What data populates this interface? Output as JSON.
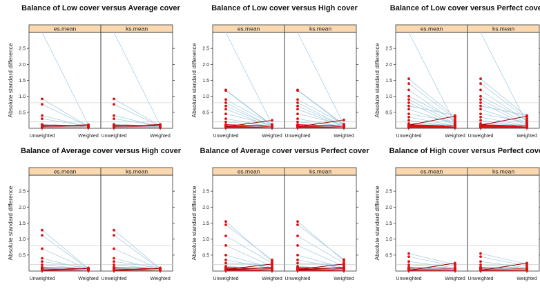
{
  "chart_data": [
    {
      "type": "line",
      "title": "Balance of Low cover versus Average cover",
      "ylabel": "Absolute standard difference",
      "panels": [
        "es.mean",
        "ks.mean"
      ],
      "x_categories": [
        "Unweighted",
        "Weighted"
      ],
      "y_ticks": [
        "0.5",
        "1.0",
        "1.5",
        "2.0",
        "2.5"
      ],
      "ylim": [
        0,
        3.0
      ],
      "reference_lines": [
        0.2,
        0.8
      ],
      "colors": {
        "points": "#dd1111",
        "normal_lines": "#a8cde0",
        "increase_lines": "#990000",
        "strip": "#fbd9b0"
      },
      "series": [
        {
          "panel": "es.mean",
          "pairs": [
            [
              0.92,
              0.06
            ],
            [
              0.75,
              0.05
            ],
            [
              0.4,
              0.04
            ],
            [
              0.3,
              0.06
            ],
            [
              0.12,
              0.05
            ],
            [
              0.1,
              0.03
            ],
            [
              0.08,
              0.1
            ],
            [
              0.05,
              0.03
            ],
            [
              0.03,
              0.02
            ],
            [
              0.06,
              0.11
            ],
            [
              3.0,
              0.1
            ]
          ]
        },
        {
          "panel": "ks.mean",
          "pairs": [
            [
              0.92,
              0.08
            ],
            [
              0.75,
              0.06
            ],
            [
              0.4,
              0.05
            ],
            [
              0.3,
              0.07
            ],
            [
              0.12,
              0.05
            ],
            [
              0.1,
              0.04
            ],
            [
              0.08,
              0.1
            ],
            [
              0.05,
              0.03
            ],
            [
              0.03,
              0.02
            ],
            [
              0.06,
              0.12
            ],
            [
              3.0,
              0.1
            ]
          ]
        }
      ]
    },
    {
      "type": "line",
      "title": "Balance of Low cover versus High cover",
      "ylabel": "Absolute standard difference",
      "panels": [
        "es.mean",
        "ks.mean"
      ],
      "x_categories": [
        "Unweighted",
        "Weighted"
      ],
      "y_ticks": [
        "0.5",
        "1.0",
        "1.5",
        "2.0",
        "2.5"
      ],
      "ylim": [
        0,
        3.0
      ],
      "reference_lines": [
        0.2,
        0.8
      ],
      "colors": {
        "points": "#dd1111",
        "normal_lines": "#a8cde0",
        "increase_lines": "#990000",
        "strip": "#fbd9b0"
      },
      "series": [
        {
          "panel": "es.mean",
          "pairs": [
            [
              1.2,
              0.1
            ],
            [
              1.18,
              0.08
            ],
            [
              0.9,
              0.12
            ],
            [
              0.8,
              0.05
            ],
            [
              0.7,
              0.06
            ],
            [
              0.6,
              0.04
            ],
            [
              0.45,
              0.1
            ],
            [
              0.3,
              0.05
            ],
            [
              0.2,
              0.08
            ],
            [
              0.1,
              0.03
            ],
            [
              0.05,
              0.25
            ],
            [
              3.0,
              0.12
            ]
          ]
        },
        {
          "panel": "ks.mean",
          "pairs": [
            [
              1.2,
              0.12
            ],
            [
              1.18,
              0.09
            ],
            [
              0.9,
              0.13
            ],
            [
              0.8,
              0.06
            ],
            [
              0.7,
              0.06
            ],
            [
              0.6,
              0.05
            ],
            [
              0.45,
              0.11
            ],
            [
              0.3,
              0.05
            ],
            [
              0.2,
              0.08
            ],
            [
              0.1,
              0.03
            ],
            [
              0.05,
              0.26
            ],
            [
              3.0,
              0.12
            ]
          ]
        }
      ]
    },
    {
      "type": "line",
      "title": "Balance of Low cover versus Perfect cover",
      "ylabel": "Absolute standard difference",
      "panels": [
        "es.mean",
        "ks.mean"
      ],
      "x_categories": [
        "Unweighted",
        "Weighted"
      ],
      "y_ticks": [
        "0.5",
        "1.0",
        "1.5",
        "2.0",
        "2.5"
      ],
      "ylim": [
        0,
        3.0
      ],
      "reference_lines": [
        0.2,
        0.8
      ],
      "colors": {
        "points": "#dd1111",
        "normal_lines": "#a8cde0",
        "increase_lines": "#990000",
        "strip": "#fbd9b0"
      },
      "series": [
        {
          "panel": "es.mean",
          "pairs": [
            [
              1.55,
              0.35
            ],
            [
              1.4,
              0.3
            ],
            [
              1.2,
              0.2
            ],
            [
              1.0,
              0.25
            ],
            [
              0.9,
              0.15
            ],
            [
              0.8,
              0.1
            ],
            [
              0.7,
              0.4
            ],
            [
              0.6,
              0.12
            ],
            [
              0.45,
              0.2
            ],
            [
              0.35,
              0.08
            ],
            [
              0.25,
              0.05
            ],
            [
              0.15,
              0.1
            ],
            [
              0.1,
              0.38
            ],
            [
              3.0,
              0.15
            ]
          ]
        },
        {
          "panel": "ks.mean",
          "pairs": [
            [
              1.55,
              0.36
            ],
            [
              1.4,
              0.3
            ],
            [
              1.2,
              0.22
            ],
            [
              1.0,
              0.25
            ],
            [
              0.9,
              0.16
            ],
            [
              0.8,
              0.1
            ],
            [
              0.7,
              0.4
            ],
            [
              0.6,
              0.12
            ],
            [
              0.45,
              0.2
            ],
            [
              0.35,
              0.08
            ],
            [
              0.25,
              0.05
            ],
            [
              0.15,
              0.1
            ],
            [
              0.1,
              0.38
            ],
            [
              3.0,
              0.15
            ]
          ]
        }
      ]
    },
    {
      "type": "line",
      "title": "Balance of Average cover versus High cover",
      "ylabel": "Absolute standard difference",
      "panels": [
        "es.mean",
        "ks.mean"
      ],
      "x_categories": [
        "Unweighted",
        "Weighted"
      ],
      "y_ticks": [
        "0.5",
        "1.0",
        "1.5",
        "2.0",
        "2.5"
      ],
      "ylim": [
        0,
        3.0
      ],
      "reference_lines": [
        0.2,
        0.8
      ],
      "colors": {
        "points": "#dd1111",
        "normal_lines": "#a8cde0",
        "increase_lines": "#990000",
        "strip": "#fbd9b0"
      },
      "series": [
        {
          "panel": "es.mean",
          "pairs": [
            [
              1.28,
              0.08
            ],
            [
              1.12,
              0.06
            ],
            [
              0.7,
              0.05
            ],
            [
              0.4,
              0.04
            ],
            [
              0.3,
              0.1
            ],
            [
              0.2,
              0.06
            ],
            [
              0.12,
              0.03
            ],
            [
              0.08,
              0.05
            ],
            [
              0.05,
              0.02
            ],
            [
              0.03,
              0.08
            ]
          ]
        },
        {
          "panel": "ks.mean",
          "pairs": [
            [
              1.28,
              0.08
            ],
            [
              1.12,
              0.06
            ],
            [
              0.7,
              0.05
            ],
            [
              0.4,
              0.04
            ],
            [
              0.3,
              0.1
            ],
            [
              0.2,
              0.06
            ],
            [
              0.12,
              0.03
            ],
            [
              0.08,
              0.05
            ],
            [
              0.05,
              0.02
            ],
            [
              0.03,
              0.08
            ]
          ]
        }
      ]
    },
    {
      "type": "line",
      "title": "Balance of Average cover versus Perfect cover",
      "ylabel": "Absolute standard difference",
      "panels": [
        "es.mean",
        "ks.mean"
      ],
      "x_categories": [
        "Unweighted",
        "Weighted"
      ],
      "y_ticks": [
        "0.5",
        "1.0",
        "1.5",
        "2.0",
        "2.5"
      ],
      "ylim": [
        0,
        3.0
      ],
      "reference_lines": [
        0.2,
        0.8
      ],
      "colors": {
        "points": "#dd1111",
        "normal_lines": "#a8cde0",
        "increase_lines": "#990000",
        "strip": "#fbd9b0"
      },
      "series": [
        {
          "panel": "es.mean",
          "pairs": [
            [
              1.55,
              0.3
            ],
            [
              1.45,
              0.35
            ],
            [
              1.1,
              0.25
            ],
            [
              0.8,
              0.15
            ],
            [
              0.5,
              0.1
            ],
            [
              0.35,
              0.08
            ],
            [
              0.25,
              0.2
            ],
            [
              0.15,
              0.05
            ],
            [
              0.1,
              0.03
            ],
            [
              0.05,
              0.22
            ],
            [
              0.04,
              0.12
            ]
          ]
        },
        {
          "panel": "ks.mean",
          "pairs": [
            [
              1.55,
              0.32
            ],
            [
              1.45,
              0.36
            ],
            [
              1.1,
              0.25
            ],
            [
              0.8,
              0.15
            ],
            [
              0.5,
              0.1
            ],
            [
              0.35,
              0.08
            ],
            [
              0.25,
              0.2
            ],
            [
              0.15,
              0.05
            ],
            [
              0.1,
              0.03
            ],
            [
              0.05,
              0.22
            ],
            [
              0.04,
              0.12
            ]
          ]
        }
      ]
    },
    {
      "type": "line",
      "title": "Balance of High cover versus Perfect cover",
      "ylabel": "Absolute standard difference",
      "panels": [
        "es.mean",
        "ks.mean"
      ],
      "x_categories": [
        "Unweighted",
        "Weighted"
      ],
      "y_ticks": [
        "0.5",
        "1.0",
        "1.5",
        "2.0",
        "2.5"
      ],
      "ylim": [
        0,
        3.0
      ],
      "reference_lines": [
        0.2,
        0.8
      ],
      "colors": {
        "points": "#dd1111",
        "normal_lines": "#a8cde0",
        "increase_lines": "#990000",
        "strip": "#fbd9b0"
      },
      "series": [
        {
          "panel": "es.mean",
          "pairs": [
            [
              0.55,
              0.2
            ],
            [
              0.45,
              0.15
            ],
            [
              0.3,
              0.1
            ],
            [
              0.2,
              0.08
            ],
            [
              0.12,
              0.05
            ],
            [
              0.08,
              0.06
            ],
            [
              0.05,
              0.04
            ],
            [
              0.02,
              0.25
            ]
          ]
        },
        {
          "panel": "ks.mean",
          "pairs": [
            [
              0.55,
              0.22
            ],
            [
              0.45,
              0.16
            ],
            [
              0.3,
              0.1
            ],
            [
              0.2,
              0.08
            ],
            [
              0.12,
              0.05
            ],
            [
              0.08,
              0.06
            ],
            [
              0.05,
              0.04
            ],
            [
              0.02,
              0.25
            ]
          ]
        }
      ]
    }
  ]
}
